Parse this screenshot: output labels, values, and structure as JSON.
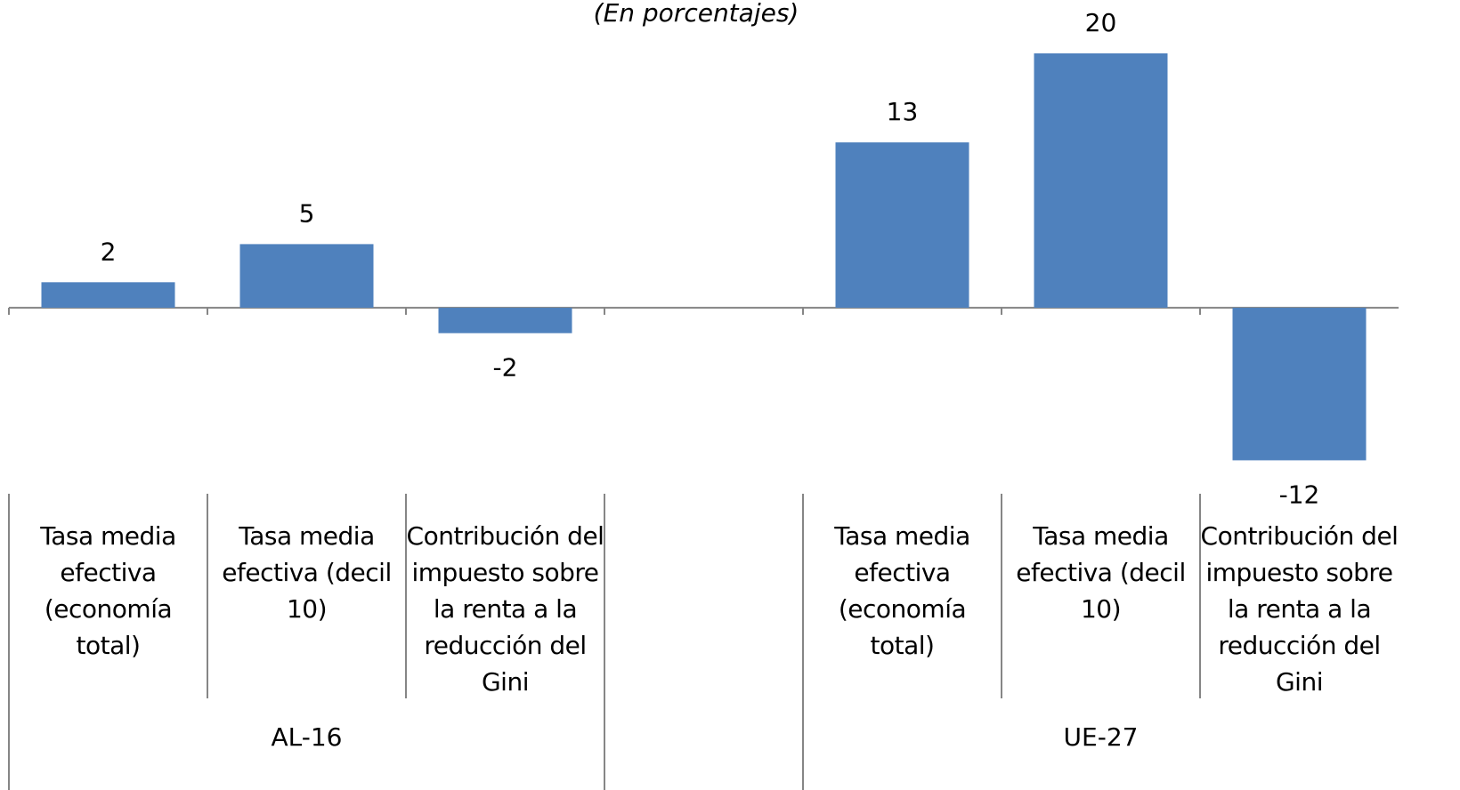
{
  "chart_data": {
    "type": "bar",
    "subtitle": "(En porcentajes)",
    "categories": [
      "Tasa media efectiva (economía total)",
      "Tasa media efectiva (decil 10)",
      "Contribución del impuesto sobre la renta a la reducción del Gini",
      null,
      "Tasa media efectiva (economía total)",
      "Tasa media efectiva (decil 10)",
      "Contribución del impuesto sobre la renta a la reducción del Gini"
    ],
    "values": [
      2,
      5,
      -2,
      null,
      13,
      20,
      -12
    ],
    "groups": [
      "AL-16",
      "UE-27"
    ],
    "color": "#4f81bd",
    "ylim": [
      -14,
      22
    ]
  }
}
